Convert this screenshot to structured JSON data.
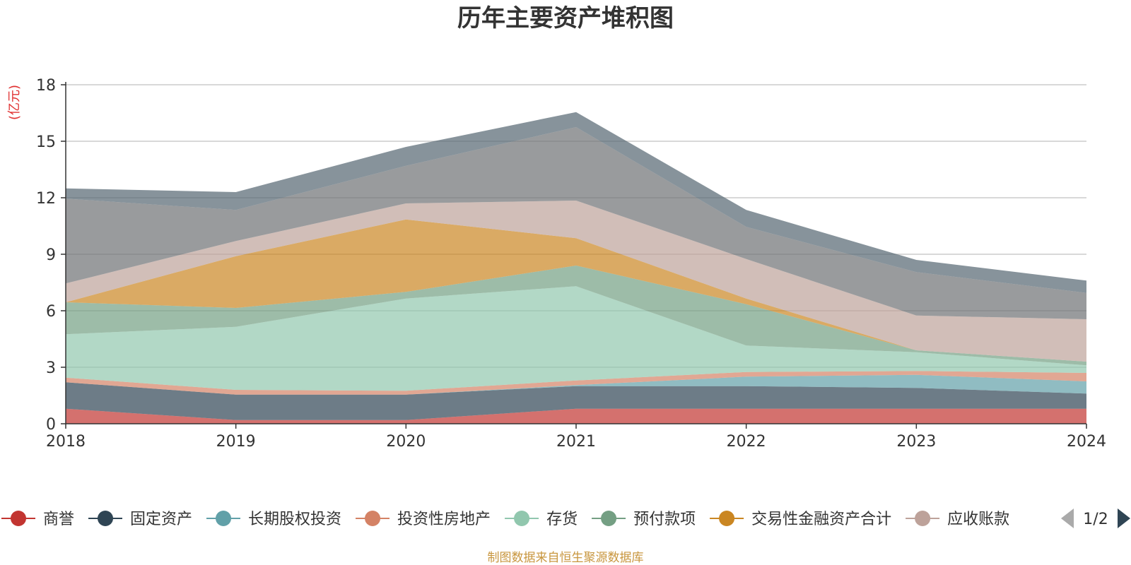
{
  "chart_data": {
    "type": "area",
    "stacked": true,
    "title": "历年主要资产堆积图",
    "unit_label": "(亿元)",
    "x": [
      "2018",
      "2019",
      "2020",
      "2021",
      "2022",
      "2023",
      "2024"
    ],
    "yticks": [
      "0",
      "3",
      "6",
      "9",
      "12",
      "15",
      "18"
    ],
    "ylim": [
      0,
      18
    ],
    "grid": true,
    "legend_position": "bottom",
    "legend_page": "1/2",
    "series": [
      {
        "name": "商誉",
        "color": "#c23531",
        "values": [
          0.8,
          0.2,
          0.2,
          0.8,
          0.8,
          0.8,
          0.8
        ]
      },
      {
        "name": "固定资产",
        "color": "#2f4554",
        "values": [
          1.4,
          1.35,
          1.35,
          1.2,
          1.2,
          1.1,
          0.8
        ]
      },
      {
        "name": "长期股权投资",
        "color": "#61a0a8",
        "values": [
          0,
          0,
          0,
          0.05,
          0.5,
          0.7,
          0.65
        ]
      },
      {
        "name": "投资性房地产",
        "color": "#d48265",
        "values": [
          0.25,
          0.25,
          0.2,
          0.25,
          0.25,
          0.2,
          0.45
        ]
      },
      {
        "name": "存货",
        "color": "#91c7ae",
        "values": [
          2.3,
          3.35,
          4.9,
          5.0,
          1.4,
          1.0,
          0.4
        ]
      },
      {
        "name": "预付款项",
        "color": "#749f83",
        "values": [
          1.7,
          1.0,
          0.35,
          1.1,
          2.2,
          0.1,
          0.2
        ]
      },
      {
        "name": "交易性金融资产合计",
        "color": "#ca8622",
        "values": [
          0,
          2.75,
          3.85,
          1.45,
          0.3,
          0,
          0
        ]
      },
      {
        "name": "应收账款",
        "color": "#bda29a",
        "values": [
          1.0,
          0.8,
          0.85,
          2.0,
          2.1,
          1.85,
          2.25
        ]
      },
      {
        "name": "",
        "color": "#6e7074",
        "values": [
          4.5,
          1.65,
          2.0,
          3.9,
          1.7,
          2.3,
          1.4
        ]
      },
      {
        "name": "",
        "color": "#546570",
        "values": [
          0.55,
          0.95,
          1.0,
          0.8,
          0.9,
          0.65,
          0.65
        ]
      }
    ]
  },
  "footer": {
    "source_text": "制图数据来自恒生聚源数据库"
  }
}
